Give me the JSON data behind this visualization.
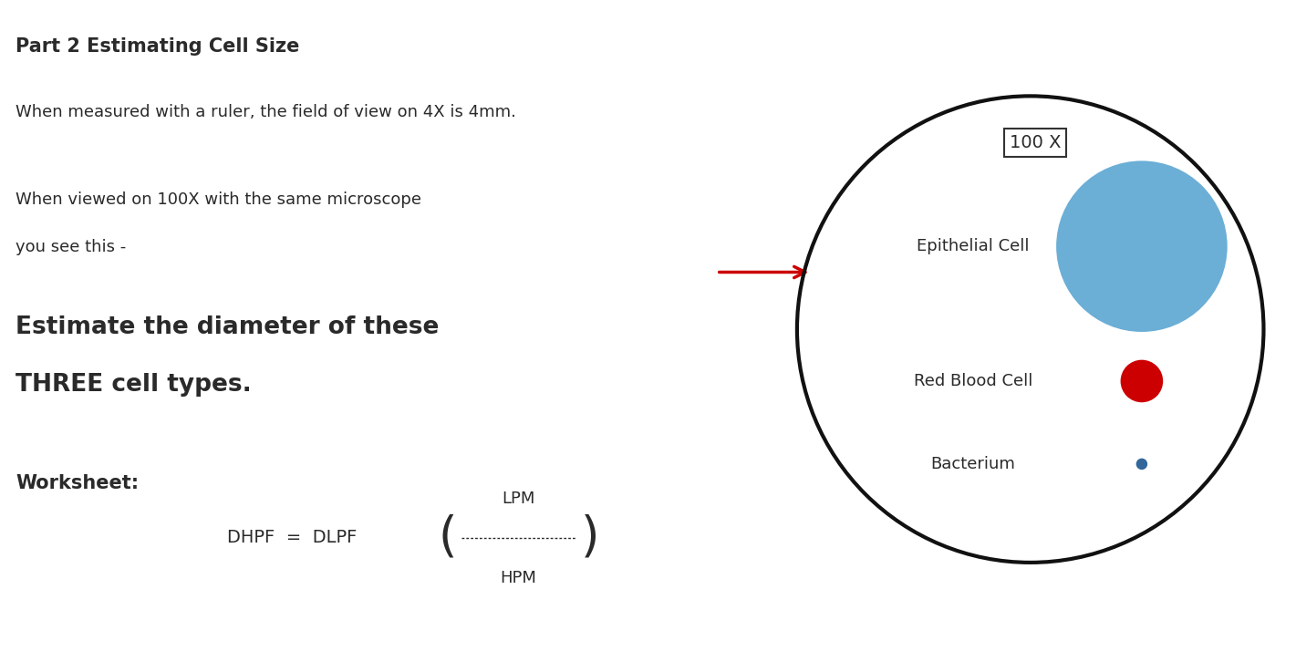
{
  "background_color": "#ffffff",
  "title": "Part 2 Estimating Cell Size",
  "title_fontsize": 15,
  "line1": "When measured with a ruler, the field of view on 4X is 4mm.",
  "line1_fontsize": 13,
  "line2a": "When viewed on 100X with the same microscope",
  "line2b": "you see this -",
  "line2_fontsize": 13,
  "line3a": "Estimate the diameter of these",
  "line3b": "THREE cell types.",
  "line3_fontsize": 19,
  "worksheet_label": "Worksheet:",
  "worksheet_fontsize": 15,
  "formula_main": "DHPF  =  DLPF",
  "formula_lpm": "LPM",
  "formula_hpm": "HPM",
  "formula_dots": "- - - - - - - - - - - - - - -",
  "circle_edge_color": "#111111",
  "circle_linewidth": 3,
  "label_100x": "100 X",
  "epithelial_label": "Epithelial Cell",
  "epithelial_color": "#6baed6",
  "rbc_label": "Red Blood Cell",
  "rbc_color": "#cc0000",
  "bacterium_label": "Bacterium",
  "bacterium_color": "#336699",
  "arrow_color": "#cc0000",
  "text_color_dark": "#2a2a2a"
}
